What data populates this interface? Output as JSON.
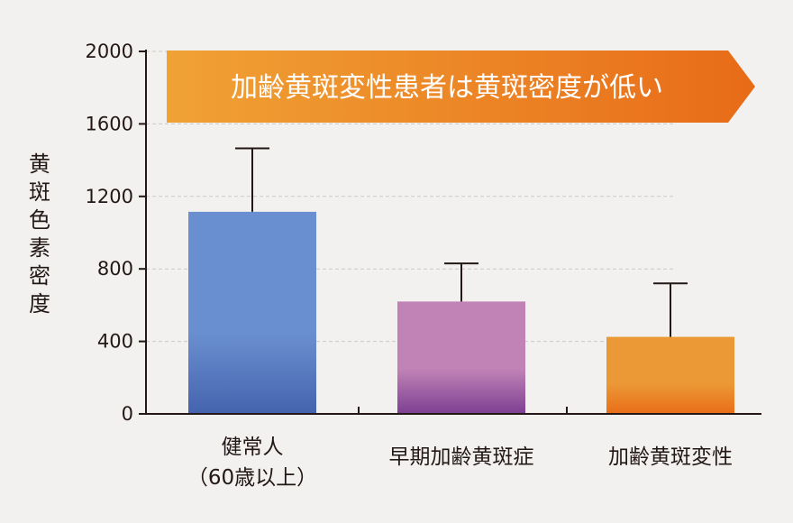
{
  "chart_data": {
    "type": "bar",
    "title": "加齢黄斑変性患者は黄斑密度が低い",
    "ylabel": "黄斑色素密度",
    "xlabel": "",
    "ylim": [
      0,
      2000
    ],
    "yticks": [
      0,
      400,
      800,
      1200,
      1600,
      2000
    ],
    "ytick_labels": [
      "0",
      "400",
      "800",
      "1200",
      "1600",
      "2000"
    ],
    "grid": true,
    "categories": [
      {
        "line1": "健常人",
        "line2": "（60歳以上）"
      },
      {
        "line1": "早期加齢黄斑症",
        "line2": ""
      },
      {
        "line1": "加齢黄斑変性",
        "line2": ""
      }
    ],
    "values": [
      1115,
      620,
      425
    ],
    "error_upper": [
      1465,
      830,
      720
    ]
  },
  "colors": {
    "bar_colors": [
      [
        "#6a8fd0",
        "#4563ae"
      ],
      [
        "#c183b6",
        "#7d3f92"
      ],
      [
        "#eb9936",
        "#e96d18"
      ]
    ],
    "banner": [
      "#f0a235",
      "#e86b18"
    ],
    "axis": "#231815",
    "grid": "#c9c9c9"
  }
}
